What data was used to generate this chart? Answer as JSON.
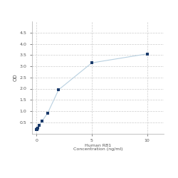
{
  "x": [
    0,
    0.0313,
    0.0625,
    0.125,
    0.25,
    0.5,
    1.0,
    2.0,
    5.0,
    10.0
  ],
  "y": [
    0.175,
    0.19,
    0.21,
    0.25,
    0.37,
    0.55,
    0.9,
    1.95,
    3.15,
    3.55
  ],
  "line_color": "#b8d0e0",
  "marker_color": "#1a3a6b",
  "marker_size": 3.5,
  "xlabel_line1": "Human RB1",
  "xlabel_line2": "Concentration (ng/ml)",
  "ylabel": "OD",
  "xlim": [
    -0.4,
    11.5
  ],
  "ylim": [
    0,
    5.0
  ],
  "yticks": [
    0.5,
    1.0,
    1.5,
    2.0,
    2.5,
    3.0,
    3.5,
    4.0,
    4.5
  ],
  "xtick_positions": [
    0,
    5,
    10
  ],
  "xtick_labels": [
    "0",
    "5",
    "10"
  ],
  "grid_color": "#cccccc",
  "bg_color": "#ffffff",
  "figsize": [
    2.5,
    2.5
  ],
  "dpi": 100
}
